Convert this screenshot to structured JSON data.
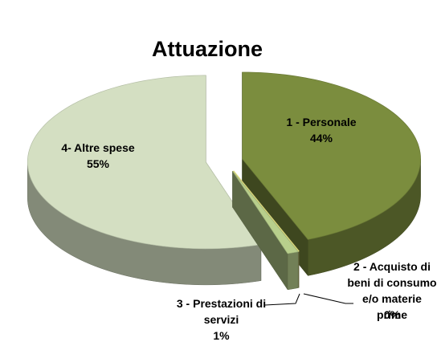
{
  "chart_data": {
    "type": "pie",
    "title": "Attuazione",
    "categories": [
      "1 - Personale",
      "2 - Acquisto di beni di consumo e/o materie prime",
      "3 - Prestazioni di servizi",
      "4- Altre spese"
    ],
    "values": [
      44,
      0,
      1,
      55
    ],
    "value_labels": [
      "44%",
      "0%",
      "1%",
      "55%"
    ],
    "colors": [
      "#7b8d3e",
      "#d9d67a",
      "#b8cf8c",
      "#d4dfc2"
    ]
  }
}
